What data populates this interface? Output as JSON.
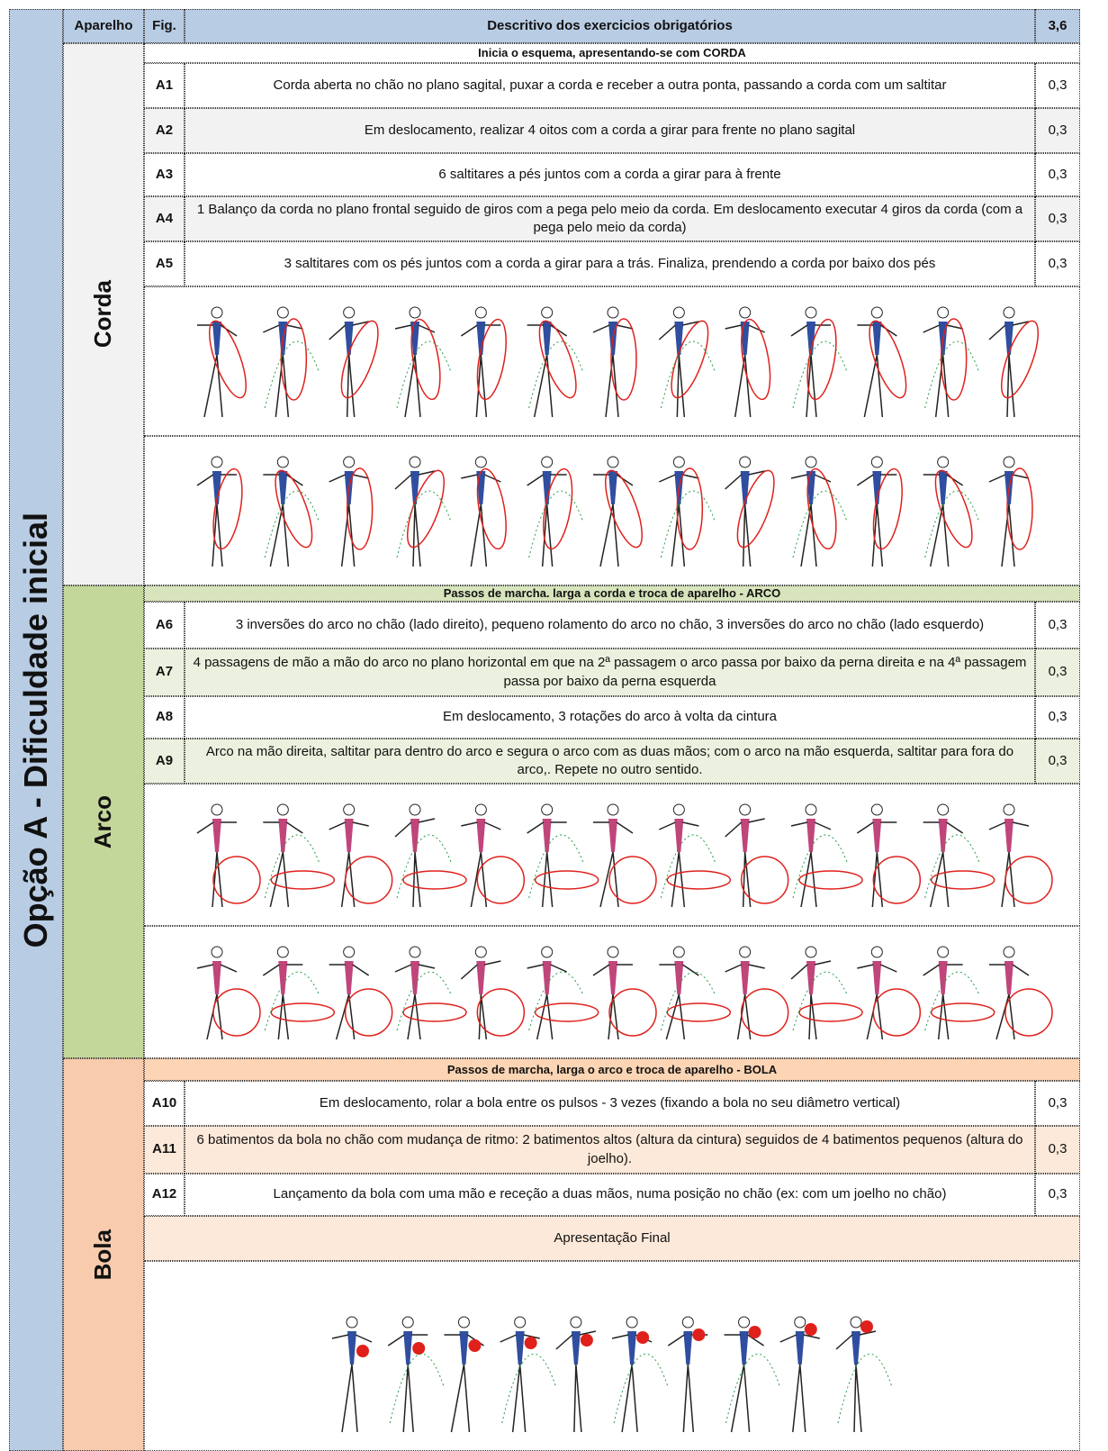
{
  "side_label": "Opção A - Dificuldade inicial",
  "header": {
    "apparatus": "Aparelho",
    "fig": "Fig.",
    "description": "Descritivo dos exercicios obrigatórios",
    "total": "3,6"
  },
  "sections": [
    {
      "apparatus": "Corda",
      "intro": "Inicia o esquema, apresentando-se com CORDA",
      "rows": [
        {
          "fig": "A1",
          "text": "Corda aberta no chão no plano sagital, puxar a corda e receber a outra ponta, passando a corda com um saltitar",
          "score": "0,3"
        },
        {
          "fig": "A2",
          "text": "Em deslocamento, realizar 4 oitos com a corda a girar para frente no plano sagital",
          "score": "0,3"
        },
        {
          "fig": "A3",
          "text": "6 saltitares a pés juntos com a corda a girar para à frente",
          "score": "0,3"
        },
        {
          "fig": "A4",
          "text": "1 Balanço da corda no plano frontal seguido de giros com a pega pelo meio da corda. Em deslocamento  executar 4 giros da corda (com a pega pelo meio da corda)",
          "score": "0,3"
        },
        {
          "fig": "A5",
          "text": "3 saltitares com os pés juntos com a corda a girar para a trás. Finaliza, prendendo a corda por baixo dos pés",
          "score": "0,3"
        }
      ]
    },
    {
      "apparatus": "Arco",
      "intro": "Passos de marcha. larga a corda e troca de aparelho - ARCO",
      "rows": [
        {
          "fig": "A6",
          "text": "3 inversões do arco no chão (lado direito), pequeno rolamento do arco no chão, 3 inversões do arco no chão (lado esquerdo)",
          "score": "0,3"
        },
        {
          "fig": "A7",
          "text": "4 passagens de mão a mão do arco no plano horizontal em que na 2ª passagem o arco passa por baixo da perna direita e na 4ª passagem passa por baixo da perna esquerda",
          "score": "0,3"
        },
        {
          "fig": "A8",
          "text": "Em deslocamento, 3 rotações do arco à volta da cintura",
          "score": "0,3"
        },
        {
          "fig": "A9",
          "text": "Arco na mão direita, saltitar para dentro do arco e segura o arco com as duas mãos; com o arco na mão esquerda, saltitar para fora do arco,. Repete no outro sentido.",
          "score": "0,3"
        }
      ]
    },
    {
      "apparatus": "Bola",
      "intro": "Passos de marcha, larga o arco e troca de aparelho - BOLA",
      "rows": [
        {
          "fig": "A10",
          "text": "Em deslocamento, rolar a bola entre os pulsos  - 3 vezes (fixando a bola no seu diâmetro vertical)",
          "score": "0,3"
        },
        {
          "fig": "A11",
          "text": "6 batimentos da bola no chão com mudança de ritmo: 2 batimentos altos (altura da cintura) seguidos de 4 batimentos pequenos (altura do joelho).",
          "score": "0,3"
        },
        {
          "fig": "A12",
          "text": "Lançamento da bola com uma mão e receção a duas mãos, numa posição no chão (ex: com um joelho no chão)",
          "score": "0,3"
        }
      ],
      "closing": "Apresentação Final"
    }
  ]
}
